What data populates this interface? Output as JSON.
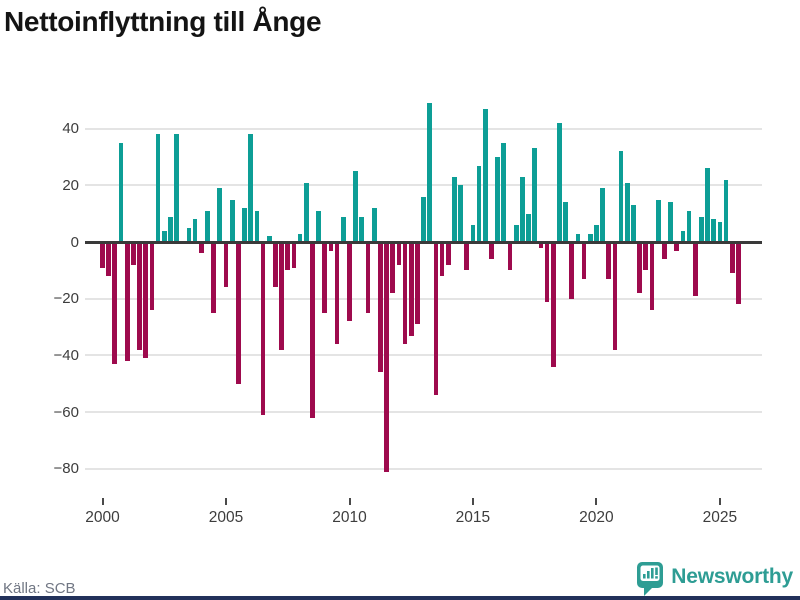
{
  "title": "Nettoinflyttning till Ånge",
  "footer": {
    "source": "Källa: SCB",
    "brand": "Newsworthy"
  },
  "colors": {
    "positive": "#0d9e96",
    "negative": "#9e0a4d",
    "grid": "#e4e4e4",
    "zero_axis": "#3a3a3a",
    "axis_text": "#3d3d3d",
    "muted_text": "#707683",
    "brand_teal": "#2e9d94",
    "bottom_strip": "#22315a"
  },
  "chart_data": {
    "type": "bar",
    "title": "Nettoinflyttning till Ånge",
    "frequency": "quarterly",
    "start_period": "2000-Q1",
    "x_tick_years": [
      "2000",
      "2005",
      "2010",
      "2015",
      "2020",
      "2025"
    ],
    "y_ticks": [
      40,
      20,
      0,
      -20,
      -40,
      -60,
      -80
    ],
    "ylim": [
      -87,
      52
    ],
    "grid": true,
    "legend": "none",
    "values": [
      -9,
      -12,
      -43,
      35,
      -42,
      -8,
      -38,
      -41,
      -24,
      38,
      4,
      9,
      38,
      0,
      5,
      8,
      -4,
      11,
      -25,
      19,
      -16,
      15,
      -50,
      12,
      38,
      11,
      -61,
      2,
      -16,
      -38,
      -10,
      -9,
      3,
      21,
      -62,
      11,
      -25,
      -3,
      -36,
      9,
      -28,
      25,
      9,
      -25,
      12,
      -46,
      -81,
      -18,
      -8,
      -36,
      -33,
      -29,
      16,
      49,
      -54,
      -12,
      -8,
      23,
      20,
      -10,
      6,
      27,
      47,
      -6,
      30,
      35,
      -10,
      6,
      23,
      10,
      33,
      -2,
      -21,
      -44,
      42,
      14,
      -20,
      3,
      -13,
      3,
      6,
      19,
      -13,
      -38,
      32,
      21,
      13,
      -18,
      -10,
      -24,
      15,
      -6,
      14,
      -3,
      4,
      11,
      -19,
      9,
      26,
      8,
      7,
      22,
      -11,
      -22
    ]
  }
}
